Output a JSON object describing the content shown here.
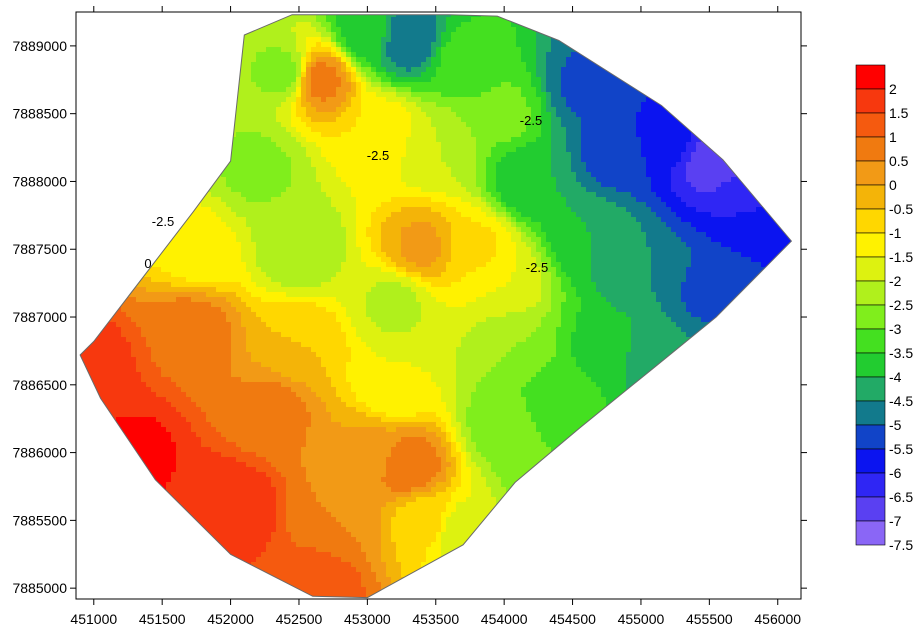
{
  "chart_data": {
    "type": "heatmap",
    "subtype": "filled-contour-map",
    "title": "",
    "xlabel": "",
    "ylabel": "",
    "xlim": [
      450870,
      456170
    ],
    "ylim": [
      7884920,
      7889250
    ],
    "x_ticks": [
      451000,
      451500,
      452000,
      452500,
      453000,
      453500,
      454000,
      454500,
      455000,
      455500,
      456000
    ],
    "y_ticks": [
      7885000,
      7885500,
      7886000,
      7886500,
      7887000,
      7887500,
      7888000,
      7888500,
      7889000
    ],
    "legend": {
      "placement": "right",
      "levels": [
        2,
        1.5,
        1,
        0.5,
        0,
        -0.5,
        -1,
        -1.5,
        -2,
        -2.5,
        -3,
        -3.5,
        -4,
        -4.5,
        -5,
        -5.5,
        -6,
        -6.5,
        -7,
        -7.5
      ],
      "colors": [
        "#ff0000",
        "#f7380e",
        "#f55a0f",
        "#f07a10",
        "#f29a16",
        "#f4b408",
        "#ffd700",
        "#fff200",
        "#ddf210",
        "#b0f01c",
        "#80ee1c",
        "#44e020",
        "#22cc30",
        "#22aa66",
        "#127a8c",
        "#1144c8",
        "#0b14f0",
        "#2f26f4",
        "#5a40f2",
        "#8a66f6"
      ]
    },
    "contour_labels": [
      "-2.5",
      "-2.5",
      "0",
      "-2.5",
      "-2.5"
    ],
    "survey_boundary": [
      [
        450900,
        7886720
      ],
      [
        451000,
        7886820
      ],
      [
        451730,
        7887780
      ],
      [
        452000,
        7888150
      ],
      [
        452100,
        7889080
      ],
      [
        452450,
        7889230
      ],
      [
        453600,
        7889230
      ],
      [
        453950,
        7889220
      ],
      [
        454400,
        7889040
      ],
      [
        455150,
        7888560
      ],
      [
        455600,
        7888160
      ],
      [
        456100,
        7887560
      ],
      [
        455550,
        7887000
      ],
      [
        455100,
        7886630
      ],
      [
        454550,
        7886180
      ],
      [
        454080,
        7885780
      ],
      [
        453700,
        7885320
      ],
      [
        453000,
        7884930
      ],
      [
        452600,
        7884940
      ],
      [
        452000,
        7885250
      ],
      [
        451450,
        7885800
      ],
      [
        451050,
        7886400
      ]
    ],
    "anchors": [
      {
        "x": 451000,
        "y": 7886650,
        "z": 1.2
      },
      {
        "x": 451300,
        "y": 7886000,
        "z": 1.6
      },
      {
        "x": 452000,
        "y": 7885600,
        "z": 1.5
      },
      {
        "x": 452650,
        "y": 7885050,
        "z": 0.8
      },
      {
        "x": 451700,
        "y": 7886900,
        "z": 0.3
      },
      {
        "x": 452300,
        "y": 7886300,
        "z": 0.2
      },
      {
        "x": 452800,
        "y": 7885500,
        "z": 0.0
      },
      {
        "x": 451750,
        "y": 7887500,
        "z": -1.8
      },
      {
        "x": 452500,
        "y": 7886800,
        "z": -1.0
      },
      {
        "x": 453000,
        "y": 7886000,
        "z": -0.4
      },
      {
        "x": 453300,
        "y": 7885900,
        "z": 0.4
      },
      {
        "x": 453400,
        "y": 7885500,
        "z": -1.2
      },
      {
        "x": 453200,
        "y": 7886500,
        "z": -2.0
      },
      {
        "x": 453700,
        "y": 7885400,
        "z": -2.4
      },
      {
        "x": 453200,
        "y": 7887100,
        "z": -2.6
      },
      {
        "x": 452500,
        "y": 7887500,
        "z": -2.9
      },
      {
        "x": 452200,
        "y": 7888100,
        "z": -3.1
      },
      {
        "x": 452400,
        "y": 7888800,
        "z": -3.2
      },
      {
        "x": 452650,
        "y": 7888750,
        "z": 0.2
      },
      {
        "x": 453100,
        "y": 7888350,
        "z": -1.5
      },
      {
        "x": 453500,
        "y": 7888250,
        "z": -2.5
      },
      {
        "x": 453400,
        "y": 7887520,
        "z": -0.4
      },
      {
        "x": 453800,
        "y": 7887500,
        "z": -1.4
      },
      {
        "x": 454000,
        "y": 7887250,
        "z": -2.0
      },
      {
        "x": 454100,
        "y": 7886800,
        "z": -3.0
      },
      {
        "x": 454000,
        "y": 7886200,
        "z": -3.3
      },
      {
        "x": 454300,
        "y": 7885900,
        "z": -3.5
      },
      {
        "x": 453000,
        "y": 7889100,
        "z": -4.3
      },
      {
        "x": 453300,
        "y": 7889050,
        "z": -5.5
      },
      {
        "x": 453700,
        "y": 7888900,
        "z": -3.8
      },
      {
        "x": 454000,
        "y": 7888500,
        "z": -3.4
      },
      {
        "x": 454200,
        "y": 7888000,
        "z": -4.5
      },
      {
        "x": 454600,
        "y": 7888700,
        "z": -5.6
      },
      {
        "x": 454800,
        "y": 7888200,
        "z": -5.7
      },
      {
        "x": 455200,
        "y": 7888300,
        "z": -6.3
      },
      {
        "x": 455500,
        "y": 7888150,
        "z": -7.2
      },
      {
        "x": 455800,
        "y": 7887800,
        "z": -6.5
      },
      {
        "x": 454600,
        "y": 7887600,
        "z": -4.5
      },
      {
        "x": 455000,
        "y": 7887300,
        "z": -5.0
      },
      {
        "x": 455500,
        "y": 7887200,
        "z": -5.6
      },
      {
        "x": 454700,
        "y": 7886800,
        "z": -4.1
      },
      {
        "x": 455100,
        "y": 7886700,
        "z": -4.8
      },
      {
        "x": 454400,
        "y": 7886400,
        "z": -3.9
      }
    ]
  }
}
